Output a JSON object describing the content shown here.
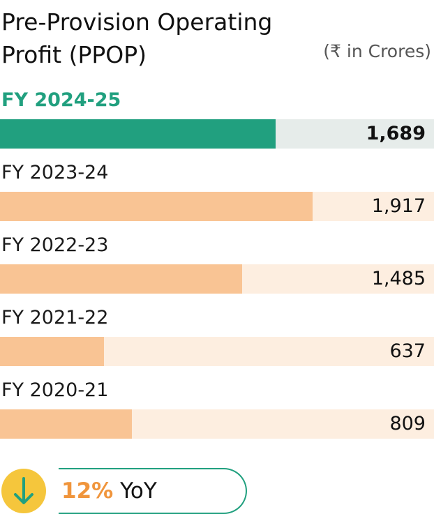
{
  "header": {
    "title": "Pre-Provision Operating Profit (PPOP)",
    "unit": "(₹ in Crores)"
  },
  "colors": {
    "current_fill": "#21a07f",
    "current_track": "#e6ecea",
    "past_fill": "#f9c494",
    "past_track": "#fdeee0",
    "accent_green": "#21a07f",
    "accent_orange": "#f0953c",
    "icon_bg": "#f5c63c"
  },
  "chart_data": {
    "type": "bar",
    "orientation": "horizontal",
    "title": "Pre-Provision Operating Profit (PPOP)",
    "unit": "(₹ in Crores)",
    "categories": [
      "FY 2024-25",
      "FY 2023-24",
      "FY 2022-23",
      "FY 2021-22",
      "FY 2020-21"
    ],
    "values": [
      1689,
      1917,
      1485,
      637,
      809
    ],
    "value_labels": [
      "1,689",
      "1,917",
      "1,485",
      "637",
      "809"
    ],
    "highlight_index": 0,
    "xlim": [
      0,
      2660
    ],
    "grid": false
  },
  "yoy": {
    "percent": "12%",
    "label": "YoY",
    "direction_icon": "arrow-down-icon"
  }
}
